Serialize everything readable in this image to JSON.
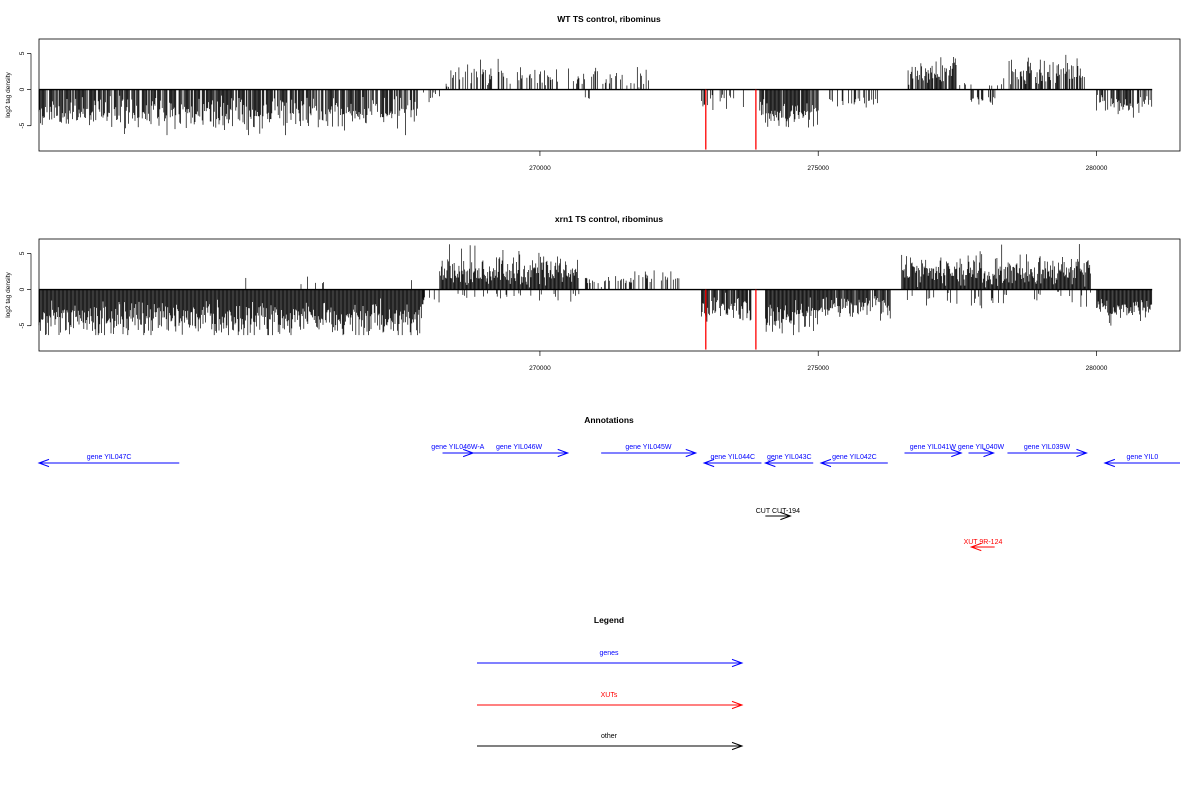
{
  "chart_data": [
    {
      "type": "bar",
      "title": "WT TS control, ribominus",
      "ylabel": "log2 tag density",
      "xlabel": "",
      "xlim": [
        261000,
        281500
      ],
      "ylim": [
        -8.5,
        7
      ],
      "yticks": [
        -5,
        0,
        5
      ],
      "xticks": [
        270000,
        275000,
        280000
      ],
      "grid": false,
      "segments": [
        {
          "start": 261000,
          "end": 267800,
          "strand": "minus",
          "density": 0.8,
          "amp": 3.2,
          "spread": 1.6
        },
        {
          "start": 267850,
          "end": 268200,
          "strand": "minus",
          "density": 0.2,
          "amp": 0.8,
          "spread": 0.4
        },
        {
          "start": 268300,
          "end": 272000,
          "strand": "plus",
          "density": 0.35,
          "amp": 1.8,
          "spread": 1.0
        },
        {
          "start": 270800,
          "end": 270900,
          "strand": "minus",
          "density": 0.5,
          "amp": 1.2,
          "spread": 0.3
        },
        {
          "start": 272900,
          "end": 273000,
          "strand": "minus",
          "density": 0.8,
          "amp": 1.8,
          "spread": 0.6
        },
        {
          "start": 272950,
          "end": 273700,
          "strand": "minus",
          "density": 0.3,
          "amp": 1.5,
          "spread": 0.8
        },
        {
          "start": 273950,
          "end": 275000,
          "strand": "minus",
          "density": 0.9,
          "amp": 3.2,
          "spread": 1.5
        },
        {
          "start": 275200,
          "end": 276100,
          "strand": "minus",
          "density": 0.3,
          "amp": 1.5,
          "spread": 0.6
        },
        {
          "start": 276600,
          "end": 277500,
          "strand": "plus",
          "density": 0.8,
          "amp": 2.2,
          "spread": 1.3
        },
        {
          "start": 277500,
          "end": 278400,
          "strand": "plus",
          "density": 0.2,
          "amp": 0.8,
          "spread": 0.6
        },
        {
          "start": 277700,
          "end": 278300,
          "strand": "minus",
          "density": 0.2,
          "amp": 1.5,
          "spread": 0.5
        },
        {
          "start": 278400,
          "end": 279800,
          "strand": "plus",
          "density": 0.7,
          "amp": 2.4,
          "spread": 1.3
        },
        {
          "start": 280000,
          "end": 281000,
          "strand": "minus",
          "density": 0.7,
          "amp": 2.0,
          "spread": 1.0
        }
      ],
      "highlights": [
        {
          "x": 272980,
          "y": -8.3
        },
        {
          "x": 273880,
          "y": -8.3
        }
      ]
    },
    {
      "type": "bar",
      "title": "xrn1 TS control, ribominus",
      "ylabel": "log2 tag density",
      "xlabel": "",
      "xlim": [
        261000,
        281500
      ],
      "ylim": [
        -8.5,
        7
      ],
      "yticks": [
        -5,
        0,
        5
      ],
      "xticks": [
        270000,
        275000,
        280000
      ],
      "grid": false,
      "segments": [
        {
          "start": 261000,
          "end": 267900,
          "strand": "minus",
          "density": 1.0,
          "amp": 4.0,
          "spread": 1.8
        },
        {
          "start": 264500,
          "end": 267800,
          "strand": "plus",
          "density": 0.03,
          "amp": 1.2,
          "spread": 0.5
        },
        {
          "start": 267900,
          "end": 268300,
          "strand": "minus",
          "density": 0.3,
          "amp": 1.0,
          "spread": 0.5
        },
        {
          "start": 268200,
          "end": 270700,
          "strand": "plus",
          "density": 1.0,
          "amp": 2.6,
          "spread": 1.5
        },
        {
          "start": 268500,
          "end": 270700,
          "strand": "minus",
          "density": 0.1,
          "amp": 0.8,
          "spread": 0.5
        },
        {
          "start": 270700,
          "end": 272500,
          "strand": "plus",
          "density": 0.35,
          "amp": 1.5,
          "spread": 0.8
        },
        {
          "start": 272900,
          "end": 273800,
          "strand": "minus",
          "density": 0.9,
          "amp": 2.6,
          "spread": 1.4
        },
        {
          "start": 274050,
          "end": 275000,
          "strand": "minus",
          "density": 1.0,
          "amp": 3.6,
          "spread": 1.7
        },
        {
          "start": 275000,
          "end": 276300,
          "strand": "minus",
          "density": 0.9,
          "amp": 2.2,
          "spread": 1.0
        },
        {
          "start": 276500,
          "end": 279900,
          "strand": "plus",
          "density": 1.0,
          "amp": 2.5,
          "spread": 1.5
        },
        {
          "start": 276500,
          "end": 279900,
          "strand": "minus",
          "density": 0.12,
          "amp": 1.2,
          "spread": 0.8
        },
        {
          "start": 280000,
          "end": 281000,
          "strand": "minus",
          "density": 1.0,
          "amp": 2.6,
          "spread": 1.0
        }
      ],
      "highlights": [
        {
          "x": 272980,
          "y": -8.3
        },
        {
          "x": 273880,
          "y": -8.3
        }
      ]
    }
  ],
  "annotations": {
    "title": "Annotations",
    "genes": [
      {
        "label": "gene YIL047C",
        "start": 261000,
        "end": 263520,
        "strand": "minus"
      },
      {
        "label": "gene YIL046W-A",
        "start": 268250,
        "end": 268800,
        "strand": "plus"
      },
      {
        "label": "gene YIL046W",
        "start": 268750,
        "end": 270500,
        "strand": "plus"
      },
      {
        "label": "gene YIL045W",
        "start": 271100,
        "end": 272800,
        "strand": "plus"
      },
      {
        "label": "gene YIL044C",
        "start": 272950,
        "end": 273980,
        "strand": "minus"
      },
      {
        "label": "gene YIL043C",
        "start": 274050,
        "end": 274910,
        "strand": "minus"
      },
      {
        "label": "gene YIL042C",
        "start": 275050,
        "end": 276250,
        "strand": "minus"
      },
      {
        "label": "gene YIL041W",
        "start": 276550,
        "end": 277570,
        "strand": "plus"
      },
      {
        "label": "gene YIL040W",
        "start": 277700,
        "end": 278150,
        "strand": "plus"
      },
      {
        "label": "gene YIL039W",
        "start": 278400,
        "end": 279820,
        "strand": "plus"
      },
      {
        "label": "gene YIL0",
        "start": 280150,
        "end": 281500,
        "strand": "minus"
      }
    ],
    "others": [
      {
        "label": "CUT CUT-194",
        "start": 274050,
        "end": 274500,
        "strand": "plus"
      }
    ],
    "xuts": [
      {
        "label": "XUT 9R-124",
        "start": 277750,
        "end": 278170,
        "strand": "minus"
      }
    ]
  },
  "legend": {
    "title": "Legend",
    "items": [
      {
        "label": "genes",
        "color": "#0000ff"
      },
      {
        "label": "XUTs",
        "color": "#ff0000"
      },
      {
        "label": "other",
        "color": "#000000"
      }
    ]
  },
  "colors": {
    "gene": "#0000ff",
    "xut": "#ff0000",
    "other": "#000000",
    "bars": "#000000",
    "highlight": "#ff0000"
  }
}
